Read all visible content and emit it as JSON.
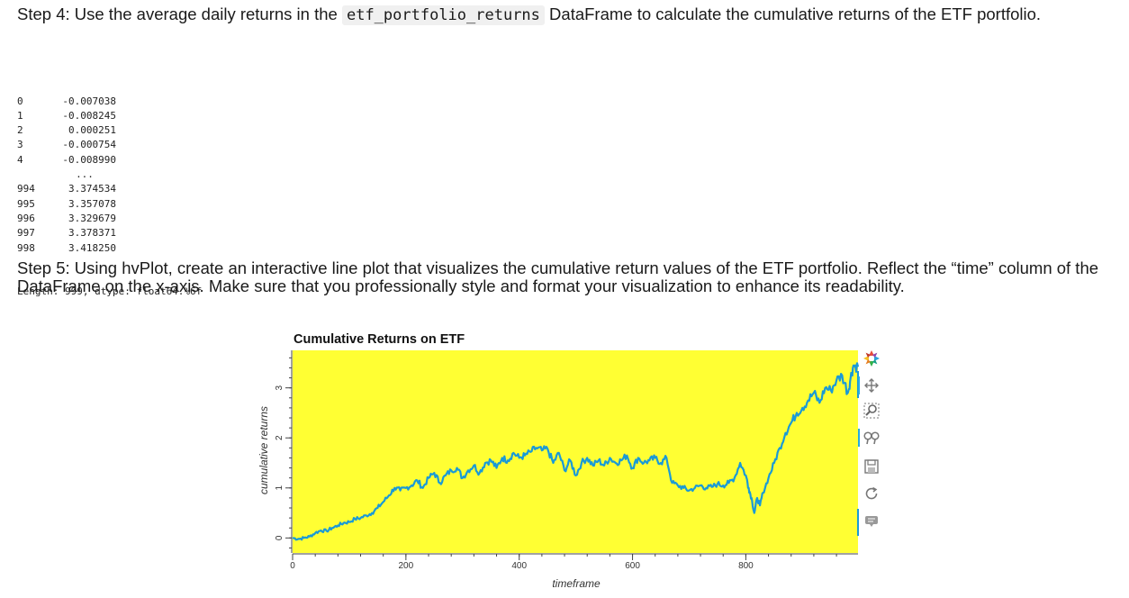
{
  "step4": {
    "text_before": "Step 4: Use the average daily returns in the ",
    "code": "etf_portfolio_returns",
    "text_after": " DataFrame to calculate the cumulative returns of the ETF portfolio."
  },
  "output": {
    "rows": [
      {
        "idx": "0",
        "val": "-0.007038"
      },
      {
        "idx": "1",
        "val": "-0.008245"
      },
      {
        "idx": "2",
        "val": "0.000251"
      },
      {
        "idx": "3",
        "val": "-0.000754"
      },
      {
        "idx": "4",
        "val": "-0.008990"
      },
      {
        "idx": "",
        "val": "..."
      },
      {
        "idx": "994",
        "val": "3.374534"
      },
      {
        "idx": "995",
        "val": "3.357078"
      },
      {
        "idx": "996",
        "val": "3.329679"
      },
      {
        "idx": "997",
        "val": "3.378371"
      },
      {
        "idx": "998",
        "val": "3.418250"
      }
    ],
    "footer": "Length: 999, dtype: float64.%6f"
  },
  "step5": {
    "text": "Step 5: Using hvPlot, create an interactive line plot that visualizes the cumulative return values of the ETF portfolio. Reflect the “time” column of the DataFrame on the x-axis. Make sure that you professionally style and format your visualization to enhance its readability."
  },
  "chart_data": {
    "type": "line",
    "title": "Cumulative Returns on ETF",
    "xlabel": "timeframe",
    "ylabel": "cumulative returns",
    "xlim": [
      0,
      998
    ],
    "ylim": [
      -0.3,
      3.75
    ],
    "xticks": [
      0,
      200,
      400,
      600,
      800
    ],
    "yticks": [
      0,
      1,
      2,
      3
    ],
    "background_color": "#ffff33",
    "line_color": "#1a9ad6",
    "grid": false,
    "series": [
      {
        "x": [
          0,
          10,
          20,
          30,
          40,
          50,
          60,
          70,
          80,
          90,
          100,
          110,
          120,
          130,
          140,
          150,
          160,
          170,
          180,
          190,
          200,
          210,
          220,
          230,
          240,
          250,
          260,
          270,
          280,
          290,
          300,
          310,
          320,
          330,
          340,
          350,
          360,
          370,
          380,
          390,
          400,
          410,
          420,
          430,
          440,
          450,
          460,
          470,
          480,
          490,
          500,
          510,
          520,
          530,
          540,
          550,
          560,
          570,
          580,
          590,
          600,
          610,
          620,
          630,
          640,
          650,
          660,
          670,
          680,
          690,
          700,
          710,
          720,
          730,
          740,
          750,
          760,
          770,
          780,
          790,
          800,
          805,
          810,
          815,
          820,
          825,
          830,
          840,
          850,
          860,
          870,
          880,
          890,
          900,
          910,
          920,
          930,
          940,
          950,
          960,
          970,
          980,
          985,
          990,
          998
        ],
        "values": [
          0.0,
          -0.02,
          0.0,
          0.03,
          0.1,
          0.15,
          0.14,
          0.2,
          0.25,
          0.3,
          0.32,
          0.38,
          0.4,
          0.45,
          0.5,
          0.6,
          0.72,
          0.85,
          1.0,
          0.95,
          1.0,
          1.05,
          1.15,
          1.0,
          1.2,
          1.3,
          1.1,
          1.25,
          1.35,
          1.4,
          1.2,
          1.35,
          1.45,
          1.3,
          1.5,
          1.55,
          1.4,
          1.6,
          1.55,
          1.7,
          1.6,
          1.65,
          1.72,
          1.8,
          1.75,
          1.78,
          1.5,
          1.7,
          1.35,
          1.55,
          1.25,
          1.5,
          1.6,
          1.45,
          1.55,
          1.45,
          1.6,
          1.5,
          1.55,
          1.65,
          1.4,
          1.6,
          1.5,
          1.55,
          1.6,
          1.5,
          1.6,
          1.1,
          1.05,
          1.0,
          0.95,
          1.0,
          1.05,
          1.0,
          1.02,
          1.08,
          1.05,
          1.1,
          1.2,
          1.5,
          1.25,
          1.0,
          0.8,
          0.5,
          0.8,
          0.65,
          0.9,
          1.2,
          1.5,
          1.8,
          2.1,
          2.3,
          2.5,
          2.6,
          2.75,
          2.9,
          2.7,
          3.0,
          2.95,
          3.15,
          3.25,
          2.9,
          3.2,
          3.45,
          3.42
        ]
      }
    ]
  },
  "toolbar": {
    "tools": [
      {
        "name": "bokeh-logo-icon",
        "interactable": false
      },
      {
        "name": "pan-tool-icon",
        "interactable": true
      },
      {
        "name": "box-zoom-tool-icon",
        "interactable": true
      },
      {
        "name": "wheel-zoom-tool-icon",
        "interactable": true
      },
      {
        "name": "save-tool-icon",
        "interactable": true
      },
      {
        "name": "reset-tool-icon",
        "interactable": true
      },
      {
        "name": "hover-tool-icon",
        "interactable": true
      }
    ]
  }
}
